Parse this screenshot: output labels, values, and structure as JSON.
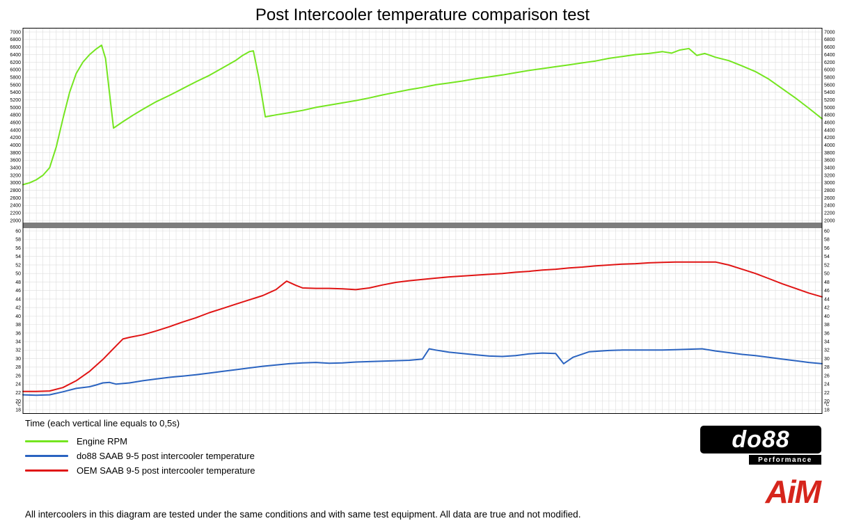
{
  "legend": [
    {
      "label": "Engine RPM",
      "color": "#74e51f"
    },
    {
      "label": "do88 SAAB 9-5 post intercooler temperature",
      "color": "#2a63c0"
    },
    {
      "label": "OEM SAAB 9-5 post intercooler temperature",
      "color": "#e01414"
    }
  ],
  "logos": {
    "do88_text": "do88",
    "do88_sub": "Performance",
    "aim_text": "AiM"
  },
  "footer": "All intercoolers in this diagram are tested under the same conditions and with same test equipment. All data are true and not modified.",
  "chart_data": {
    "type": "line",
    "title": "Post Intercooler temperature comparison test",
    "xlabel": "Time (each vertical line equals to 0,5s)",
    "x_unit": "s",
    "x_range": [
      0,
      60
    ],
    "grid_interval_s": 0.5,
    "grid": true,
    "legend_position": "bottom-left",
    "panels": [
      {
        "name": "engine-rpm",
        "ylim": [
          2000,
          7000
        ],
        "ytick_step": 200,
        "series": [
          {
            "name": "Engine RPM",
            "color": "#74e51f",
            "x": [
              0,
              0.5,
              1,
              1.5,
              2,
              2.5,
              3,
              3.5,
              4,
              4.5,
              5,
              5.5,
              5.9,
              6.2,
              6.8,
              7.5,
              8.3,
              9,
              10,
              11,
              12,
              13,
              14,
              15,
              16,
              16.5,
              17,
              17.3,
              17.7,
              18.2,
              19,
              20,
              21,
              22,
              23,
              24,
              25,
              26,
              27,
              28,
              29,
              30,
              31,
              32,
              33,
              34,
              35,
              36,
              37,
              38,
              39,
              40,
              41,
              42,
              43,
              44,
              45,
              46,
              47,
              48,
              48.7,
              49.3,
              50,
              50.6,
              51.2,
              52,
              53,
              54,
              55,
              56,
              57,
              58,
              59,
              60
            ],
            "y": [
              2950,
              3000,
              3080,
              3200,
              3400,
              3950,
              4700,
              5400,
              5900,
              6200,
              6400,
              6550,
              6650,
              6300,
              4450,
              4620,
              4800,
              4950,
              5150,
              5320,
              5500,
              5680,
              5850,
              6050,
              6250,
              6380,
              6480,
              6500,
              5800,
              4750,
              4800,
              4860,
              4920,
              5000,
              5060,
              5120,
              5180,
              5250,
              5330,
              5400,
              5470,
              5530,
              5600,
              5650,
              5700,
              5760,
              5810,
              5860,
              5920,
              5980,
              6030,
              6080,
              6130,
              6180,
              6230,
              6300,
              6350,
              6400,
              6430,
              6480,
              6440,
              6520,
              6560,
              6380,
              6430,
              6330,
              6240,
              6100,
              5950,
              5750,
              5500,
              5250,
              4980,
              4700
            ]
          }
        ]
      },
      {
        "name": "post-intercooler-temperature",
        "y_unit": "°C",
        "ylim": [
          18,
          60
        ],
        "ytick_step": 2,
        "series": [
          {
            "name": "do88 SAAB 9-5 post intercooler temperature",
            "color": "#2a63c0",
            "x": [
              0,
              1,
              2,
              3,
              4,
              5,
              5.5,
              6,
              6.5,
              7,
              8,
              9,
              10,
              11,
              12,
              13,
              14,
              15,
              16,
              17,
              18,
              19,
              20,
              21,
              22,
              23,
              24,
              25,
              26,
              27,
              28,
              29,
              30,
              30.5,
              31,
              32,
              33,
              34,
              35,
              36,
              37,
              38,
              39,
              40,
              40.6,
              41.3,
              42.5,
              44,
              45,
              46,
              47,
              48,
              49,
              50,
              51,
              52,
              53,
              54,
              55,
              56,
              57,
              58,
              59,
              60
            ],
            "y": [
              21.5,
              21.4,
              21.5,
              22.2,
              23.0,
              23.4,
              23.8,
              24.3,
              24.4,
              24.0,
              24.3,
              24.8,
              25.2,
              25.6,
              25.9,
              26.2,
              26.6,
              27.0,
              27.4,
              27.8,
              28.2,
              28.5,
              28.8,
              29.0,
              29.1,
              28.9,
              29.0,
              29.2,
              29.3,
              29.4,
              29.5,
              29.6,
              29.9,
              32.3,
              32.0,
              31.5,
              31.2,
              30.9,
              30.6,
              30.5,
              30.7,
              31.1,
              31.3,
              31.2,
              28.8,
              30.3,
              31.6,
              31.9,
              32.0,
              32.0,
              32.0,
              32.0,
              32.1,
              32.2,
              32.3,
              31.8,
              31.4,
              31.0,
              30.7,
              30.3,
              29.9,
              29.5,
              29.1,
              28.8
            ]
          },
          {
            "name": "OEM SAAB 9-5 post intercooler temperature",
            "color": "#e01414",
            "x": [
              0,
              1,
              2,
              3,
              4,
              5,
              6,
              7,
              7.5,
              8,
              9,
              10,
              11,
              12,
              13,
              14,
              15,
              16,
              17,
              18,
              19,
              19.8,
              20.5,
              21,
              22,
              23,
              24,
              25,
              26,
              27,
              28,
              29,
              30,
              31,
              32,
              33,
              34,
              35,
              36,
              37,
              38,
              39,
              40,
              41,
              42,
              43,
              44,
              45,
              46,
              47,
              48,
              49,
              50,
              51,
              52,
              53,
              54,
              55,
              56,
              57,
              58,
              59,
              60
            ],
            "y": [
              22.3,
              22.3,
              22.4,
              23.2,
              24.8,
              27.0,
              29.8,
              33.0,
              34.6,
              35.0,
              35.6,
              36.5,
              37.5,
              38.6,
              39.6,
              40.8,
              41.8,
              42.8,
              43.8,
              44.8,
              46.2,
              48.2,
              47.2,
              46.6,
              46.5,
              46.5,
              46.4,
              46.2,
              46.6,
              47.3,
              47.9,
              48.3,
              48.6,
              48.9,
              49.2,
              49.4,
              49.6,
              49.8,
              50.0,
              50.3,
              50.5,
              50.8,
              51.0,
              51.3,
              51.5,
              51.8,
              52.0,
              52.2,
              52.3,
              52.5,
              52.6,
              52.7,
              52.7,
              52.7,
              52.7,
              52.0,
              51.0,
              50.0,
              48.8,
              47.6,
              46.5,
              45.4,
              44.5
            ]
          }
        ]
      }
    ]
  }
}
